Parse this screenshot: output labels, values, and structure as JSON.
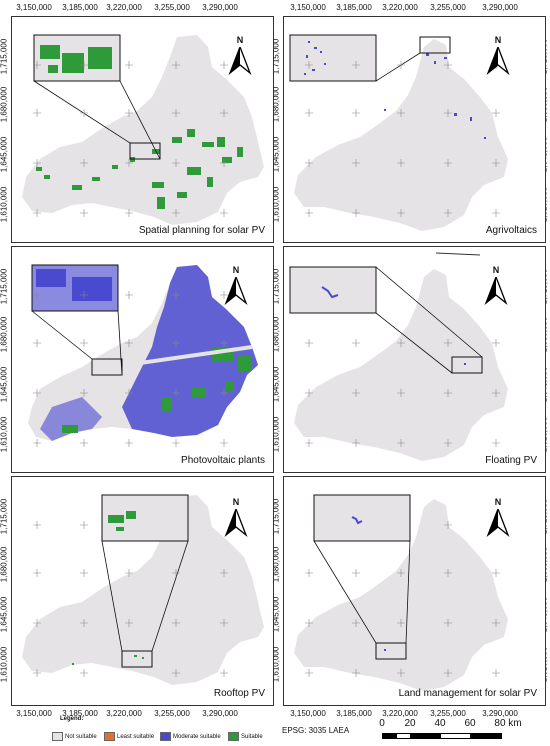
{
  "x_ticks": [
    "3,150,000",
    "3,185,000",
    "3,220,000",
    "3,255,000",
    "3,290,000"
  ],
  "y_ticks": [
    "1,715,000",
    "1,680,000",
    "1,645,000",
    "1,610,000"
  ],
  "north_label": "N",
  "panels": [
    {
      "title": "Spatial planning for solar PV"
    },
    {
      "title": "Agrivoltaics"
    },
    {
      "title": "Photovoltaic plants"
    },
    {
      "title": "Floating PV"
    },
    {
      "title": "Rooftop PV"
    },
    {
      "title": "Land management for solar PV"
    }
  ],
  "legend": {
    "title": "Legend:",
    "items": [
      {
        "label": "Not suitable",
        "color": "#e6e3e6"
      },
      {
        "label": "Least suitable",
        "color": "#e07030"
      },
      {
        "label": "Moderate suitable",
        "color": "#4a4ad0"
      },
      {
        "label": "Suitable",
        "color": "#2e9a3a"
      }
    ]
  },
  "epsg": "EPSG: 3035 LAEA",
  "scale": {
    "labels": [
      "0",
      "20",
      "40",
      "60",
      "80 km"
    ]
  },
  "colors": {
    "land": "#e6e3e6",
    "moderate": "#4a4ad0",
    "suitable": "#2e9a3a",
    "border": "#333333"
  }
}
